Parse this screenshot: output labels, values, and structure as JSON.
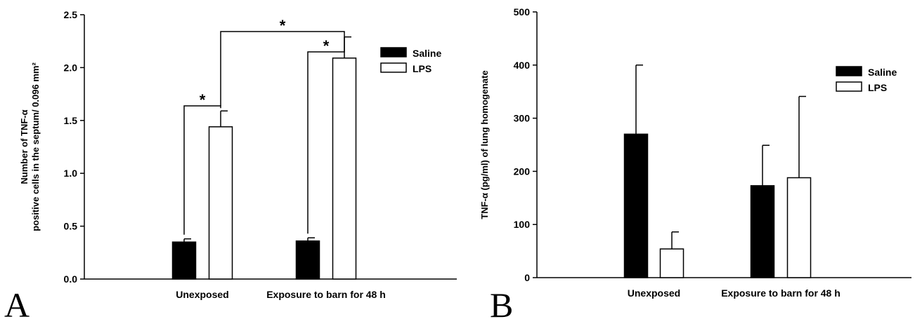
{
  "chart_data": [
    {
      "type": "bar",
      "panel_label": "A",
      "ylabel_line1": "Number of TNF-α",
      "ylabel_line2": "positive cells in the septum/ 0.096 mm²",
      "ylim": [
        0,
        2.5
      ],
      "yticks": [
        "0.0",
        "0.5",
        "1.0",
        "1.5",
        "2.0",
        "2.5"
      ],
      "categories": [
        "Unexposed",
        "Exposure to barn for 48 h"
      ],
      "series": [
        {
          "name": "Saline",
          "values": [
            0.35,
            0.36
          ],
          "errors": [
            0.03,
            0.03
          ],
          "fill": "#000000"
        },
        {
          "name": "LPS",
          "values": [
            1.44,
            2.09
          ],
          "errors": [
            0.15,
            0.2
          ],
          "fill": "#ffffff"
        }
      ],
      "legend_position": "top-right",
      "significance": [
        {
          "label": "*",
          "between": "Saline vs LPS, Unexposed"
        },
        {
          "label": "*",
          "between": "Saline vs LPS, Exposure to barn for 48 h"
        },
        {
          "label": "*",
          "between": "LPS Unexposed vs LPS Exposure to barn for 48 h"
        }
      ]
    },
    {
      "type": "bar",
      "panel_label": "B",
      "ylabel": "TNF-α (pg/ml) of lung homogenate",
      "ylim": [
        0,
        500
      ],
      "yticks": [
        "0",
        "100",
        "200",
        "300",
        "400",
        "500"
      ],
      "categories": [
        "Unexposed",
        "Exposure to barn for 48 h"
      ],
      "series": [
        {
          "name": "Saline",
          "values": [
            270,
            173
          ],
          "errors": [
            130,
            76
          ],
          "fill": "#000000"
        },
        {
          "name": "LPS",
          "values": [
            54,
            188
          ],
          "errors": [
            32,
            153
          ],
          "fill": "#ffffff"
        }
      ],
      "legend_position": "top-right"
    }
  ]
}
